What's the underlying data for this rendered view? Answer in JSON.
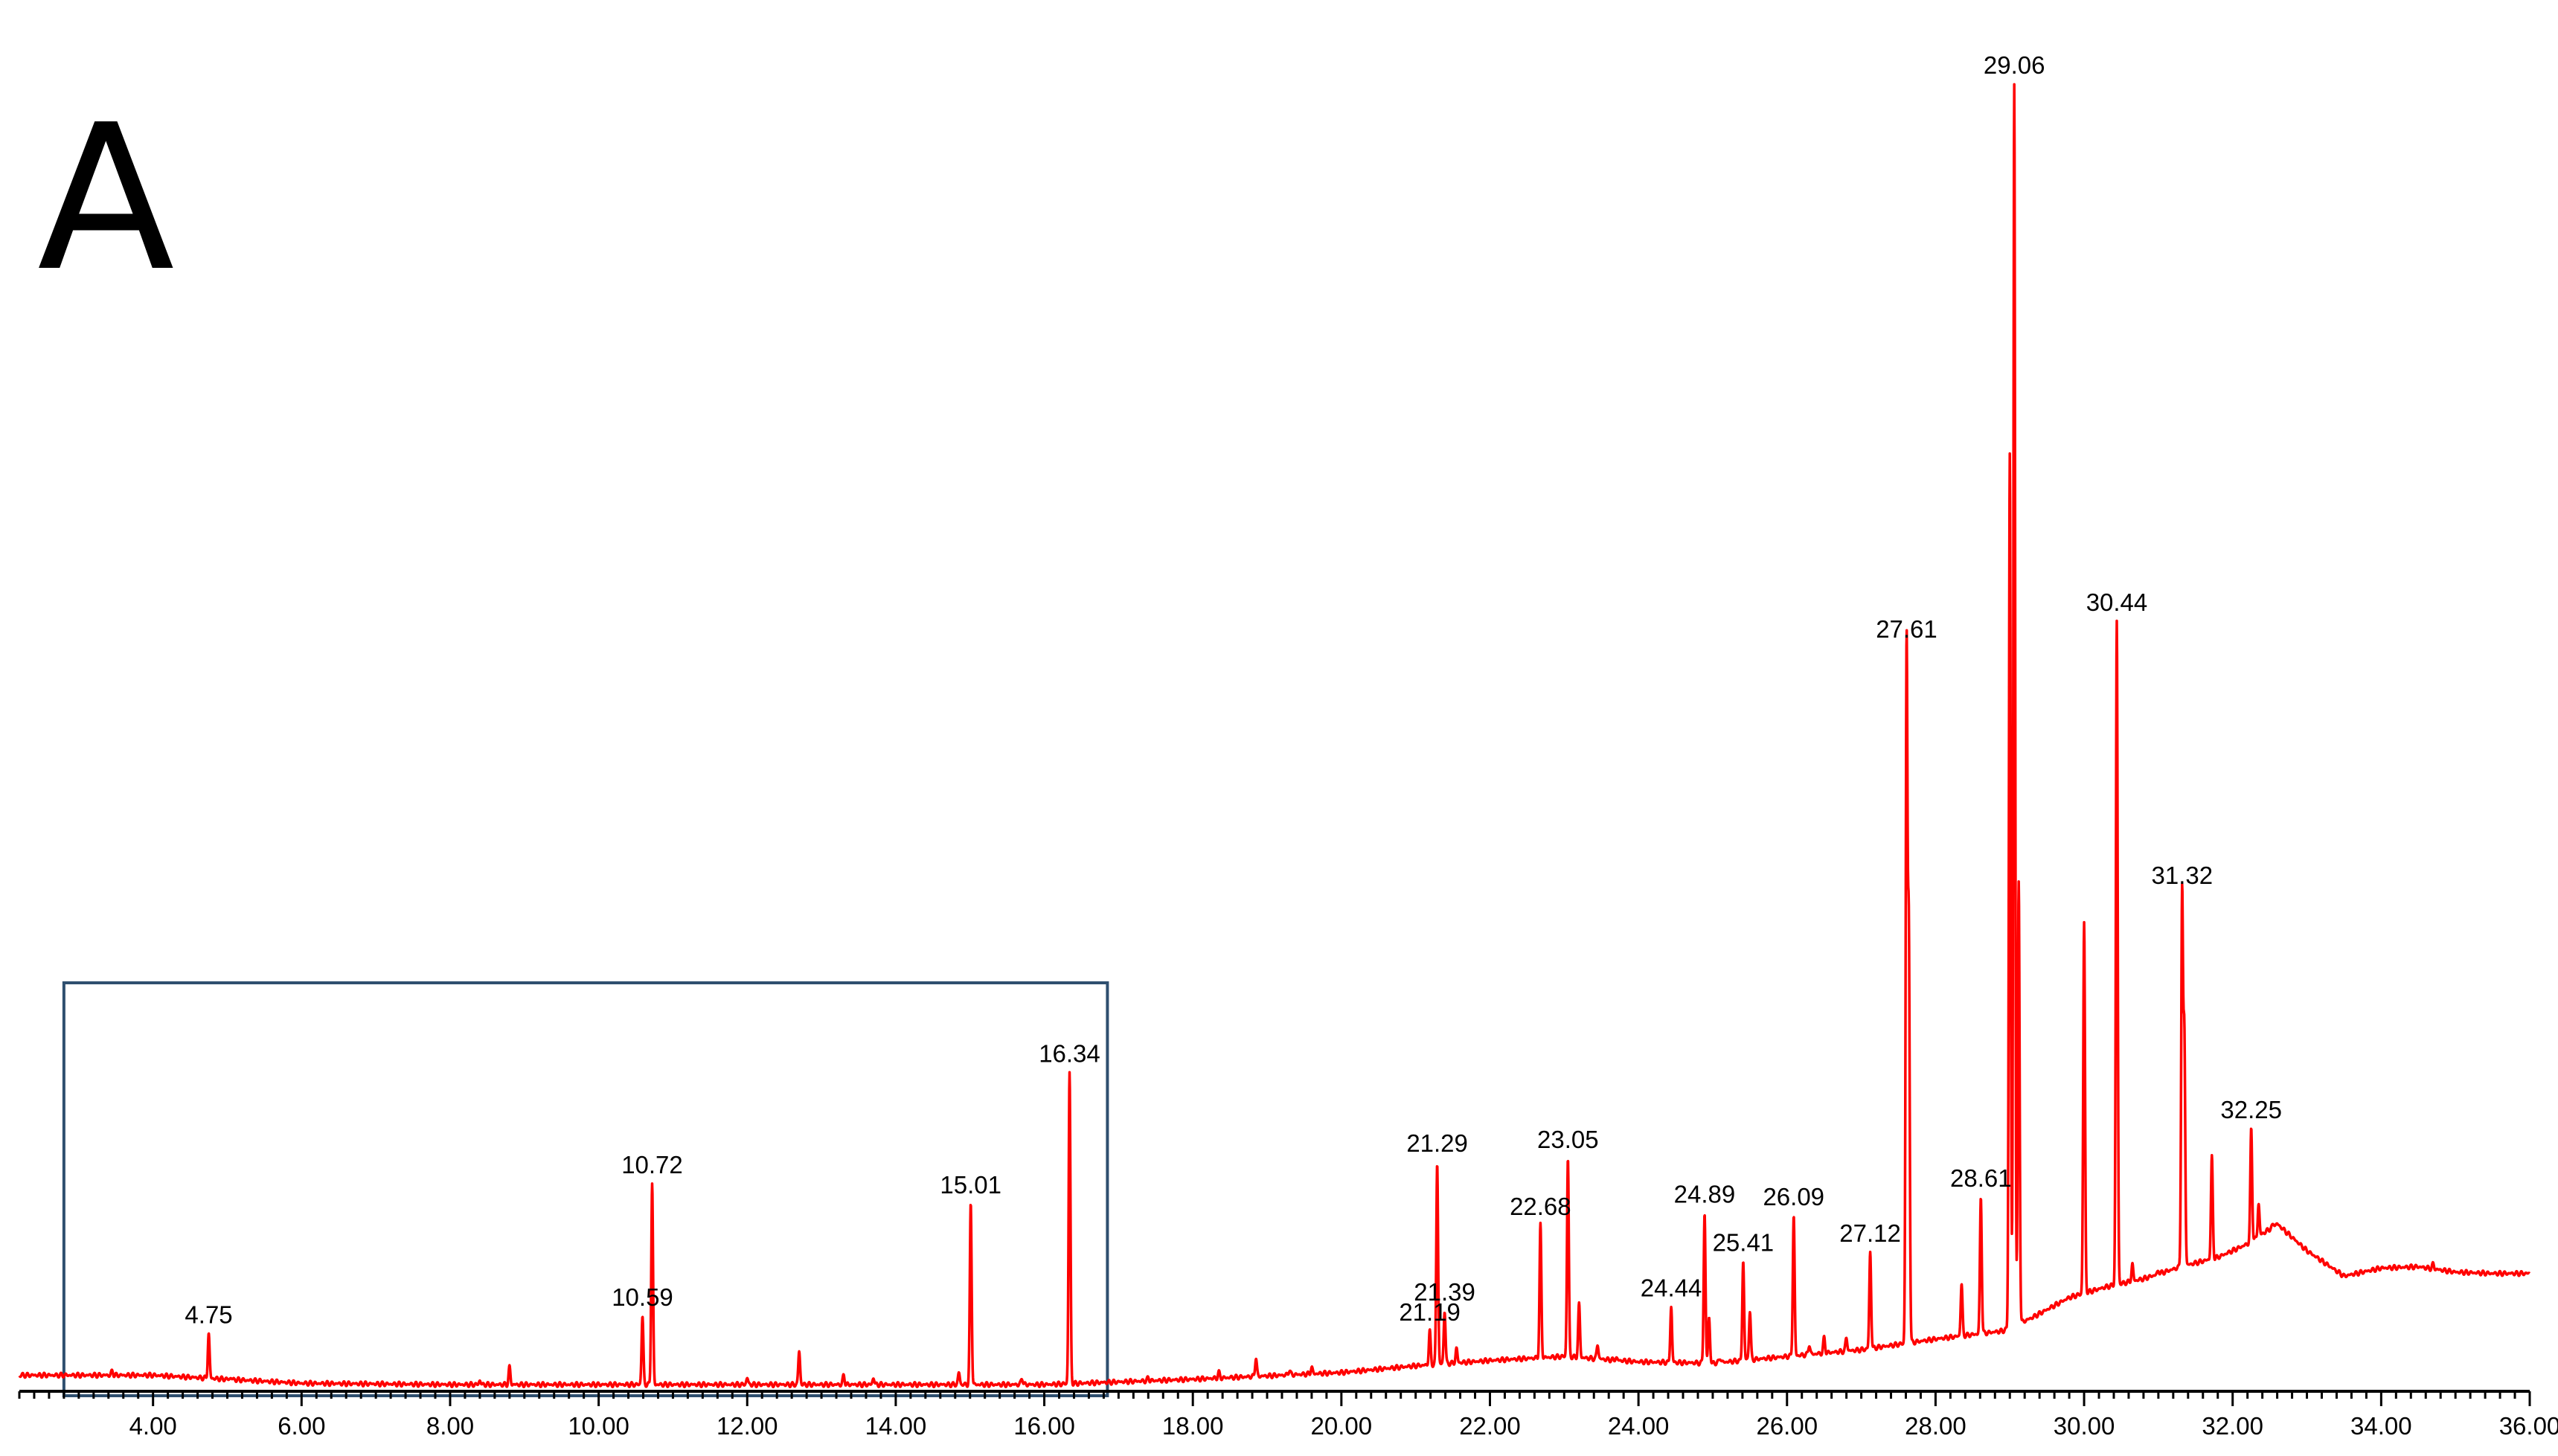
{
  "panel_label": "A",
  "chart_data": {
    "type": "line",
    "title": "",
    "xlabel": "",
    "ylabel": "",
    "xlim": [
      2.2,
      36.0
    ],
    "ylim": [
      0,
      100
    ],
    "grid": false,
    "x_ticks": [
      "4.00",
      "6.00",
      "8.00",
      "10.00",
      "12.00",
      "14.00",
      "16.00",
      "18.00",
      "20.00",
      "22.00",
      "24.00",
      "26.00",
      "28.00",
      "30.00",
      "32.00",
      "34.00",
      "36.00"
    ],
    "x_tick_values": [
      4,
      6,
      8,
      10,
      12,
      14,
      16,
      18,
      20,
      22,
      24,
      26,
      28,
      30,
      32,
      34,
      36
    ],
    "highlight_box": {
      "x_from": 2.8,
      "x_to": 16.85,
      "y_top": 30.5
    },
    "peaks": [
      {
        "label": "4.75",
        "x": 4.75,
        "y": 4.3
      },
      {
        "label": "10.59",
        "x": 10.59,
        "y": 5.6
      },
      {
        "label": "10.72",
        "x": 10.72,
        "y": 15.5
      },
      {
        "label": "15.01",
        "x": 15.01,
        "y": 14.0
      },
      {
        "label": "16.34",
        "x": 16.34,
        "y": 23.8
      },
      {
        "label": "21.19",
        "x": 21.19,
        "y": 4.5
      },
      {
        "label": "21.29",
        "x": 21.29,
        "y": 17.1
      },
      {
        "label": "21.39",
        "x": 21.39,
        "y": 6.0
      },
      {
        "label": "22.68",
        "x": 22.68,
        "y": 12.4
      },
      {
        "label": "23.05",
        "x": 23.05,
        "y": 17.4
      },
      {
        "label": "24.44",
        "x": 24.44,
        "y": 6.3
      },
      {
        "label": "24.89",
        "x": 24.89,
        "y": 13.3
      },
      {
        "label": "25.41",
        "x": 25.41,
        "y": 9.7
      },
      {
        "label": "26.09",
        "x": 26.09,
        "y": 13.1
      },
      {
        "label": "27.12",
        "x": 27.12,
        "y": 10.4
      },
      {
        "label": "27.61",
        "x": 27.61,
        "y": 55.5
      },
      {
        "label": "28.61",
        "x": 28.61,
        "y": 14.5
      },
      {
        "label": "29.06",
        "x": 29.06,
        "y": 97.6
      },
      {
        "label": "30.44",
        "x": 30.44,
        "y": 57.5
      },
      {
        "label": "31.32",
        "x": 31.32,
        "y": 37.1
      },
      {
        "label": "32.25",
        "x": 32.25,
        "y": 19.6
      }
    ],
    "minor_peaks": [
      {
        "x": 3.45,
        "y": 1.5
      },
      {
        "x": 5.05,
        "y": 1.0
      },
      {
        "x": 8.4,
        "y": 0.8
      },
      {
        "x": 8.8,
        "y": 1.8
      },
      {
        "x": 12.0,
        "y": 1.0
      },
      {
        "x": 12.7,
        "y": 3.0
      },
      {
        "x": 13.3,
        "y": 1.2
      },
      {
        "x": 13.7,
        "y": 1.0
      },
      {
        "x": 14.85,
        "y": 1.4
      },
      {
        "x": 15.7,
        "y": 1.0
      },
      {
        "x": 17.4,
        "y": 1.0
      },
      {
        "x": 18.35,
        "y": 1.4
      },
      {
        "x": 18.85,
        "y": 2.5
      },
      {
        "x": 19.3,
        "y": 1.6
      },
      {
        "x": 19.6,
        "y": 1.8
      },
      {
        "x": 20.2,
        "y": 1.4
      },
      {
        "x": 20.5,
        "y": 1.2
      },
      {
        "x": 21.0,
        "y": 1.6
      },
      {
        "x": 21.55,
        "y": 3.2
      },
      {
        "x": 21.8,
        "y": 2.0
      },
      {
        "x": 23.2,
        "y": 6.5
      },
      {
        "x": 23.45,
        "y": 3.5
      },
      {
        "x": 23.7,
        "y": 2.5
      },
      {
        "x": 24.1,
        "y": 2.0
      },
      {
        "x": 24.95,
        "y": 5.5
      },
      {
        "x": 25.1,
        "y": 2.5
      },
      {
        "x": 25.5,
        "y": 6.0
      },
      {
        "x": 26.3,
        "y": 3.5
      },
      {
        "x": 26.5,
        "y": 4.0
      },
      {
        "x": 26.8,
        "y": 4.0
      },
      {
        "x": 27.64,
        "y": 34.0
      },
      {
        "x": 28.35,
        "y": 8.0
      },
      {
        "x": 29.0,
        "y": 70.0
      },
      {
        "x": 29.12,
        "y": 38.0
      },
      {
        "x": 30.0,
        "y": 35.0
      },
      {
        "x": 30.65,
        "y": 9.5
      },
      {
        "x": 31.0,
        "y": 9.0
      },
      {
        "x": 31.35,
        "y": 26.5
      },
      {
        "x": 31.72,
        "y": 17.5
      },
      {
        "x": 32.35,
        "y": 14.0
      },
      {
        "x": 32.55,
        "y": 12.5
      },
      {
        "x": 34.0,
        "y": 9.0
      },
      {
        "x": 34.7,
        "y": 9.5
      }
    ],
    "baseline": [
      [
        2.2,
        1.2
      ],
      [
        4.0,
        1.2
      ],
      [
        6.0,
        0.6
      ],
      [
        8.0,
        0.5
      ],
      [
        10.0,
        0.5
      ],
      [
        12.0,
        0.5
      ],
      [
        14.0,
        0.5
      ],
      [
        16.0,
        0.5
      ],
      [
        17.0,
        0.7
      ],
      [
        18.0,
        0.9
      ],
      [
        20.0,
        1.4
      ],
      [
        21.0,
        1.9
      ],
      [
        22.0,
        2.3
      ],
      [
        23.0,
        2.6
      ],
      [
        24.0,
        2.2
      ],
      [
        25.0,
        2.1
      ],
      [
        26.0,
        2.6
      ],
      [
        27.0,
        3.1
      ],
      [
        28.0,
        3.9
      ],
      [
        28.9,
        4.5
      ],
      [
        29.3,
        5.5
      ],
      [
        29.8,
        7.0
      ],
      [
        30.3,
        7.8
      ],
      [
        30.8,
        8.4
      ],
      [
        31.3,
        9.3
      ],
      [
        31.8,
        10.0
      ],
      [
        32.2,
        11.0
      ],
      [
        32.6,
        12.5
      ],
      [
        33.0,
        10.5
      ],
      [
        33.5,
        8.6
      ],
      [
        34.0,
        9.2
      ],
      [
        34.5,
        9.3
      ],
      [
        35.0,
        8.9
      ],
      [
        35.5,
        8.8
      ],
      [
        36.0,
        8.8
      ]
    ]
  }
}
